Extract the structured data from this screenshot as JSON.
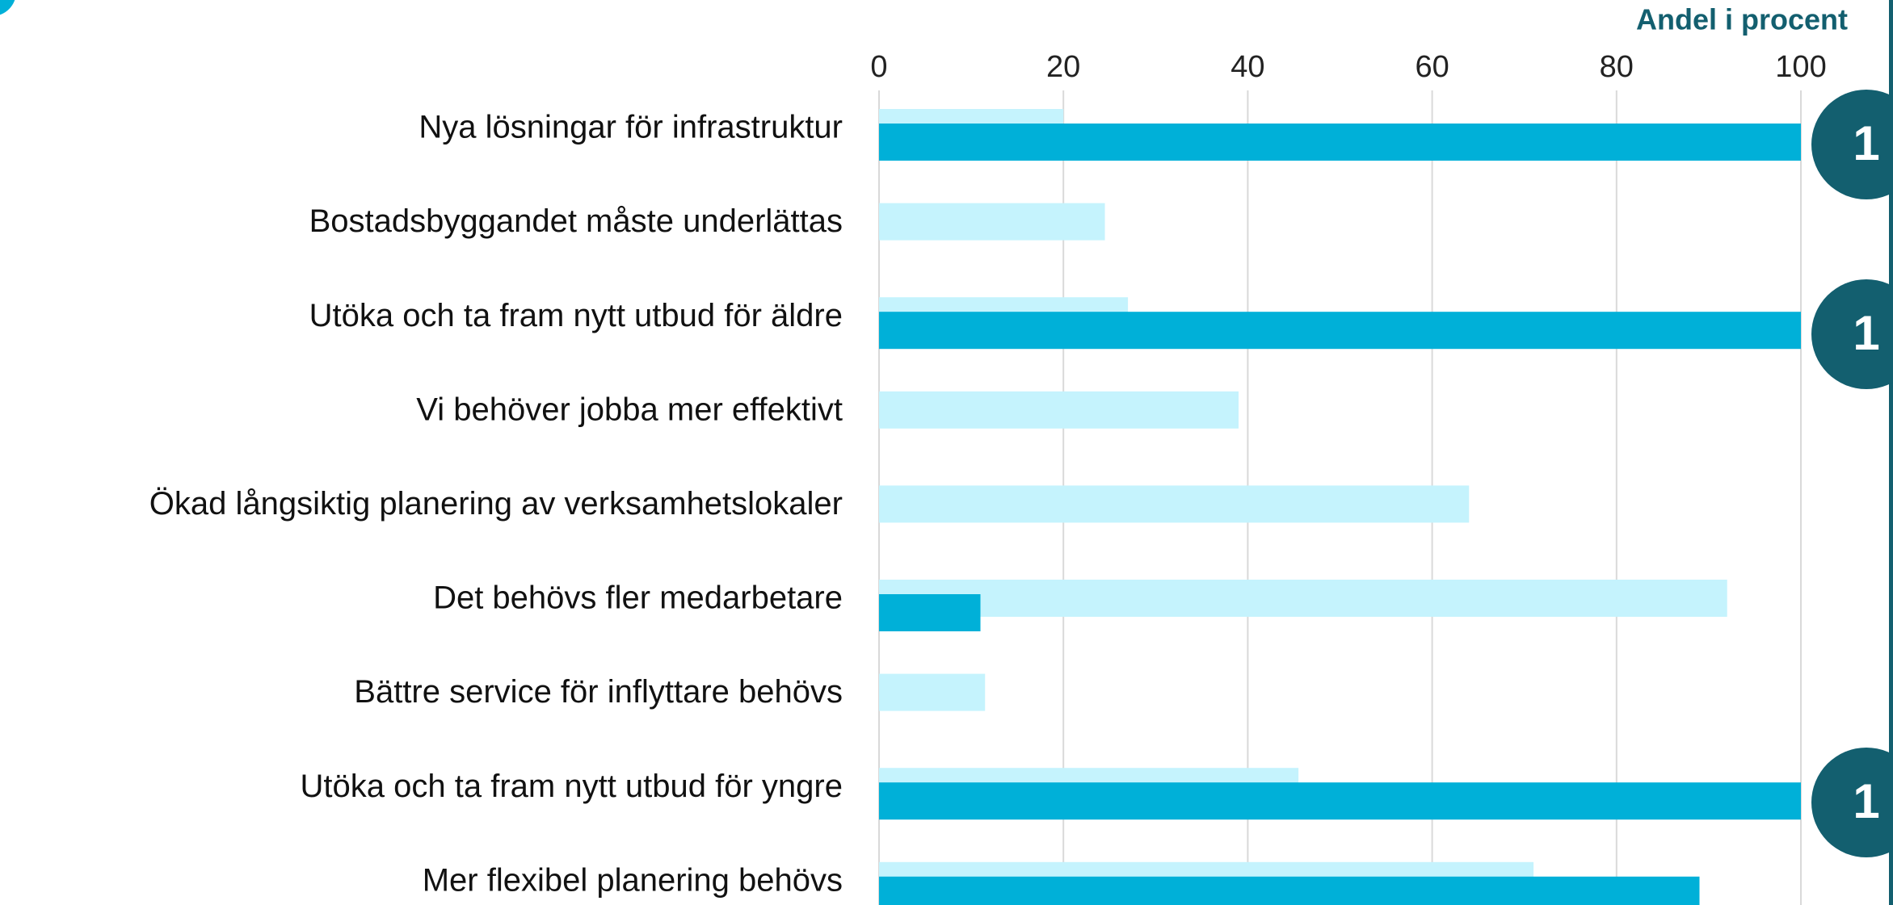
{
  "chart_data": {
    "type": "bar",
    "orientation": "horizontal",
    "x_label": "Andel i procent",
    "categories": [
      "Nya lösningar för infrastruktur",
      "Bostadsbyggandet måste underlättas",
      "Utöka och ta fram nytt utbud för äldre",
      "Vi behöver jobba mer effektivt",
      "Ökad långsiktig planering av verksamhetslokaler",
      "Det behövs fler medarbetare",
      "Bättre service för inflyttare behövs",
      "Utöka och ta fram nytt utbud för yngre",
      "Mer flexibel planering behövs"
    ],
    "series": [
      {
        "color": "#c5f3fd",
        "values": [
          20,
          24.5,
          27,
          39,
          64,
          92,
          11.5,
          45.5,
          71
        ]
      },
      {
        "color": "#00b0d8",
        "values": [
          100,
          null,
          100,
          null,
          null,
          11,
          null,
          100,
          89
        ]
      }
    ],
    "xlim": [
      0,
      100
    ],
    "xticks": [
      0,
      20,
      40,
      60,
      80,
      100
    ],
    "grid": true,
    "badges": [
      "1",
      "1",
      "1"
    ]
  }
}
